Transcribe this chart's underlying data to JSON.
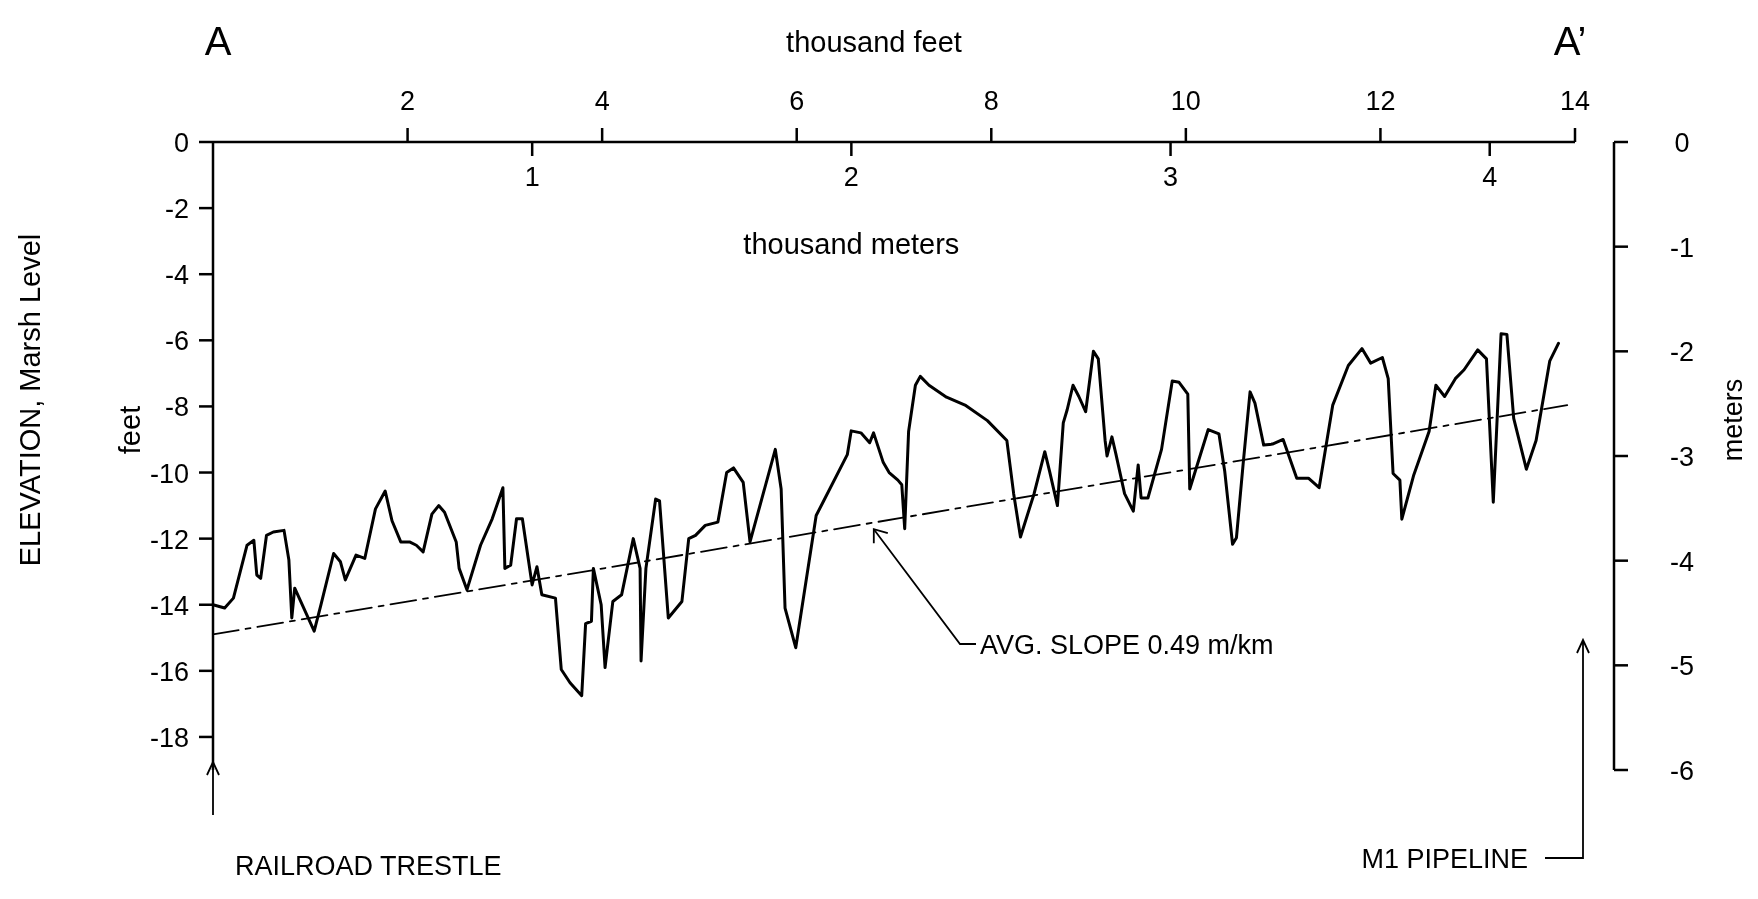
{
  "chart_data": {
    "type": "line",
    "xlabel": "thousand feet",
    "x2label": "thousand meters",
    "ylabel": "ELEVATION, Marsh Level\nfeet",
    "y2label": "meters",
    "xlim": [
      0,
      14
    ],
    "xticks": [
      2,
      4,
      6,
      8,
      10,
      12,
      14
    ],
    "x2lim": [
      0,
      4.2672
    ],
    "x2ticks": [
      1,
      2,
      3,
      4
    ],
    "ylim": [
      -19,
      0
    ],
    "yticks": [
      0,
      -2,
      -4,
      -6,
      -8,
      -10,
      -12,
      -14,
      -16,
      -18
    ],
    "y2lim": [
      -6,
      0
    ],
    "y2ticks": [
      0,
      -1,
      -2,
      -3,
      -4,
      -5,
      -6
    ],
    "grid": false,
    "marker": "none",
    "series": [
      {
        "color": "#000000",
        "line_style": "solid",
        "x": [
          0,
          0.12,
          0.21,
          0.35,
          0.42,
          0.45,
          0.49,
          0.55,
          0.62,
          0.73,
          0.78,
          0.81,
          0.84,
          1.04,
          1.11,
          1.24,
          1.31,
          1.36,
          1.47,
          1.56,
          1.67,
          1.77,
          1.84,
          1.93,
          2.02,
          2.09,
          2.16,
          2.25,
          2.32,
          2.38,
          2.5,
          2.53,
          2.61,
          2.75,
          2.87,
          2.98,
          3.0,
          3.06,
          3.12,
          3.18,
          3.24,
          3.28,
          3.33,
          3.38,
          3.52,
          3.58,
          3.67,
          3.79,
          3.83,
          3.89,
          3.91,
          3.99,
          4.03,
          4.11,
          4.2,
          4.32,
          4.39,
          4.4,
          4.45,
          4.55,
          4.59,
          4.68,
          4.82,
          4.89,
          4.96,
          5.06,
          5.19,
          5.28,
          5.35,
          5.45,
          5.52,
          5.78,
          5.84,
          5.88,
          5.99,
          6.2,
          6.27,
          6.52,
          6.56,
          6.66,
          6.75,
          6.79,
          6.89,
          6.95,
          7.04,
          7.08,
          7.11,
          7.15,
          7.22,
          7.27,
          7.36,
          7.54,
          7.73,
          7.96,
          8.16,
          8.23,
          8.3,
          8.44,
          8.55,
          8.6,
          8.68,
          8.74,
          8.78,
          8.84,
          8.9,
          8.97,
          9.05,
          9.1,
          9.17,
          9.19,
          9.24,
          9.28,
          9.37,
          9.46,
          9.51,
          9.54,
          9.61,
          9.75,
          9.86,
          9.93,
          10.02,
          10.04,
          10.23,
          10.34,
          10.4,
          10.48,
          10.52,
          10.59,
          10.66,
          10.71,
          10.8,
          10.89,
          11.0,
          11.14,
          11.26,
          11.37,
          11.51,
          11.67,
          11.81,
          11.9,
          12.02,
          12.08,
          12.13,
          12.2,
          12.22,
          12.34,
          12.5,
          12.57,
          12.66,
          12.77,
          12.86,
          13.0,
          13.09,
          13.13,
          13.16,
          13.24,
          13.3,
          13.37,
          13.5,
          13.6,
          13.74,
          13.83
        ],
        "values": [
          -14.0,
          -14.1,
          -13.8,
          -12.2,
          -12.05,
          -13.1,
          -13.2,
          -11.9,
          -11.8,
          -11.75,
          -12.65,
          -14.4,
          -13.5,
          -14.8,
          -14.0,
          -12.45,
          -12.7,
          -13.25,
          -12.5,
          -12.6,
          -11.1,
          -10.56,
          -11.46,
          -12.1,
          -12.1,
          -12.2,
          -12.4,
          -11.26,
          -11.0,
          -11.2,
          -12.1,
          -12.9,
          -13.55,
          -12.2,
          -11.4,
          -10.46,
          -12.9,
          -12.8,
          -11.4,
          -11.4,
          -12.6,
          -13.4,
          -12.85,
          -13.7,
          -13.8,
          -15.96,
          -16.36,
          -16.75,
          -14.57,
          -14.5,
          -12.9,
          -14.0,
          -15.9,
          -13.9,
          -13.7,
          -12.0,
          -12.9,
          -15.7,
          -12.9,
          -10.8,
          -10.86,
          -14.4,
          -13.9,
          -12.0,
          -11.9,
          -11.6,
          -11.5,
          -10.0,
          -9.86,
          -10.3,
          -12.1,
          -9.3,
          -10.5,
          -14.1,
          -15.3,
          -11.3,
          -10.9,
          -9.46,
          -8.74,
          -8.8,
          -9.1,
          -8.8,
          -9.7,
          -10.0,
          -10.23,
          -10.37,
          -11.7,
          -8.76,
          -7.36,
          -7.09,
          -7.36,
          -7.72,
          -7.96,
          -8.43,
          -9.03,
          -10.64,
          -11.95,
          -10.64,
          -9.37,
          -9.97,
          -11.0,
          -8.5,
          -8.1,
          -7.36,
          -7.7,
          -8.16,
          -6.33,
          -6.56,
          -9.03,
          -9.5,
          -8.92,
          -9.43,
          -10.64,
          -11.17,
          -9.77,
          -10.77,
          -10.77,
          -9.3,
          -7.23,
          -7.27,
          -7.63,
          -10.5,
          -8.7,
          -8.83,
          -9.97,
          -12.17,
          -11.97,
          -9.7,
          -7.56,
          -7.9,
          -9.17,
          -9.14,
          -9.0,
          -10.17,
          -10.17,
          -10.46,
          -7.96,
          -6.76,
          -6.25,
          -6.69,
          -6.52,
          -7.16,
          -10.03,
          -10.23,
          -11.41,
          -10.1,
          -8.76,
          -7.36,
          -7.7,
          -7.16,
          -6.89,
          -6.29,
          -6.56,
          -9.03,
          -10.9,
          -5.8,
          -5.82,
          -8.36,
          -9.9,
          -9.03,
          -6.63,
          -6.09
        ]
      },
      {
        "color": "#000000",
        "line_style": "dashed",
        "x": [
          0,
          13.92
        ],
        "values": [
          -14.9,
          -7.96
        ]
      }
    ],
    "annotations": [
      "A",
      "A’",
      "AVG. SLOPE 0.49 m/km",
      "RAILROAD TRESTLE",
      "M1 PIPELINE"
    ]
  }
}
